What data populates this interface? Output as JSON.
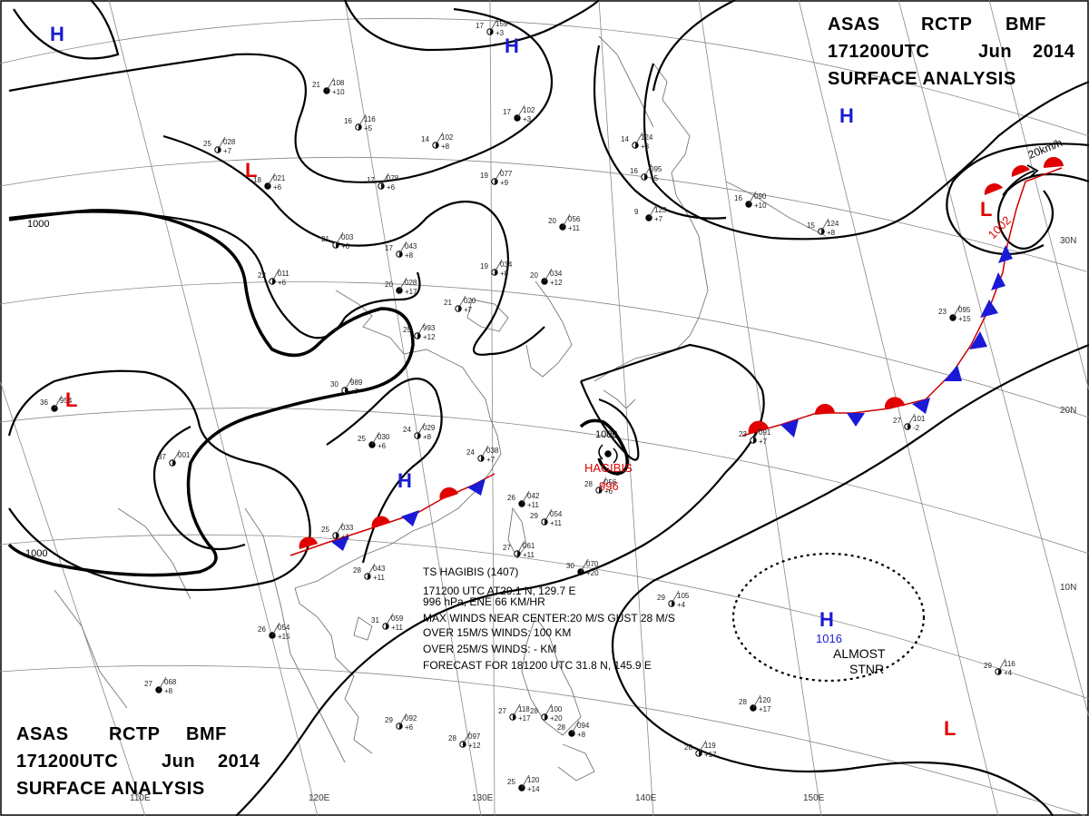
{
  "header_top": {
    "line1_a": "ASAS",
    "line1_b": "RCTP",
    "line1_c": "BMF",
    "line2_a": "171200UTC",
    "line2_b": "Jun",
    "line2_c": "2014",
    "line3": "SURFACE ANALYSIS"
  },
  "header_bottom": {
    "line1_a": "ASAS",
    "line1_b": "RCTP",
    "line1_c": "BMF",
    "line2_a": "171200UTC",
    "line2_b": "Jun",
    "line2_c": "2014",
    "line3": "SURFACE ANALYSIS"
  },
  "storm_info": {
    "l1": "TS  HAGIBIS  (1407)",
    "l2": "171200 UTC  AT29.1 N, 129.7 E",
    "l3": "996 hPa, ENE  66 KM/HR",
    "l4": "MAX WINDS NEAR CENTER:20 M/S GUST 28 M/S",
    "l5": "OVER 15M/S WINDS: 100 KM",
    "l6": "OVER 25M/S WINDS: - KM",
    "l7": "FORECAST FOR 181200 UTC 31.8 N, 145.9 E"
  },
  "storm": {
    "name": "HAGIBIS",
    "pressure": "996"
  },
  "highs": [
    {
      "id": "h1",
      "label": "H"
    },
    {
      "id": "h2",
      "label": "H"
    },
    {
      "id": "h3",
      "label": "H"
    },
    {
      "id": "h4",
      "label": "H"
    },
    {
      "id": "h5",
      "label": "H",
      "value": "1016"
    }
  ],
  "lows": [
    {
      "id": "l1",
      "label": "L"
    },
    {
      "id": "l2",
      "label": "L"
    },
    {
      "id": "l3",
      "label": "L",
      "value": "1002"
    },
    {
      "id": "l4",
      "label": "L"
    }
  ],
  "isobars": {
    "a": "1000",
    "b": "1000",
    "c": "1000"
  },
  "stnr": {
    "l1": "ALMOST",
    "l2": "STNR"
  },
  "motion": "20km/h",
  "longitudes": [
    "110E",
    "120E",
    "130E",
    "140E",
    "150E"
  ],
  "latitudes": [
    "30N",
    "20N",
    "10N"
  ],
  "stations": [
    [
      "21",
      "108",
      "+10"
    ],
    [
      "16",
      "116",
      "+5"
    ],
    [
      "14",
      "102",
      "+8"
    ],
    [
      "17",
      "102",
      "+3"
    ],
    [
      "17",
      "159",
      "+3"
    ],
    [
      "25",
      "028",
      "+7"
    ],
    [
      "18",
      "021",
      "+6"
    ],
    [
      "17",
      "078",
      "+6"
    ],
    [
      "19",
      "077",
      "+9"
    ],
    [
      "20",
      "056",
      "+11"
    ],
    [
      "17",
      "043",
      "+8"
    ],
    [
      "21",
      "003",
      "+6"
    ],
    [
      "20",
      "028",
      "+17"
    ],
    [
      "21",
      "020",
      "+7"
    ],
    [
      "19",
      "034",
      "+8"
    ],
    [
      "20",
      "034",
      "+12"
    ],
    [
      "25",
      "993",
      "+12"
    ],
    [
      "30",
      "989",
      "+7"
    ],
    [
      "25",
      "030",
      "+6"
    ],
    [
      "24",
      "029",
      "+8"
    ],
    [
      "24",
      "038",
      "+7"
    ],
    [
      "26",
      "042",
      "+11"
    ],
    [
      "29",
      "054",
      "+11"
    ],
    [
      "27",
      "061",
      "+11"
    ],
    [
      "30",
      "070",
      "+20"
    ],
    [
      "28",
      "056",
      "+6"
    ],
    [
      "31",
      "059",
      "+11"
    ],
    [
      "26",
      "054",
      "+15"
    ],
    [
      "28",
      "097",
      "+12"
    ],
    [
      "29",
      "092",
      "+6"
    ],
    [
      "25",
      "120",
      "+14"
    ],
    [
      "27",
      "118",
      "+17"
    ],
    [
      "28",
      "100",
      "+20"
    ],
    [
      "28",
      "094",
      "+8"
    ],
    [
      "23",
      "091",
      "+7"
    ],
    [
      "27",
      "101",
      "-2"
    ],
    [
      "23",
      "095",
      "+15"
    ],
    [
      "15",
      "124",
      "+8"
    ],
    [
      "16",
      "095",
      "+5"
    ],
    [
      "9",
      "123",
      "+7"
    ],
    [
      "14",
      "124",
      "+3"
    ],
    [
      "29",
      "105",
      "+4"
    ],
    [
      "28",
      "120",
      "+17"
    ],
    [
      "28",
      "119",
      "+17"
    ],
    [
      "29",
      "116",
      "+4"
    ],
    [
      "16",
      "090",
      "+10"
    ],
    [
      "22",
      "011",
      "+6"
    ],
    [
      "28",
      "043",
      "+11"
    ],
    [
      "36",
      "954",
      ""
    ],
    [
      "37",
      "001",
      ""
    ],
    [
      "25",
      "033",
      "+1"
    ],
    [
      "27",
      "068",
      "+8"
    ]
  ]
}
